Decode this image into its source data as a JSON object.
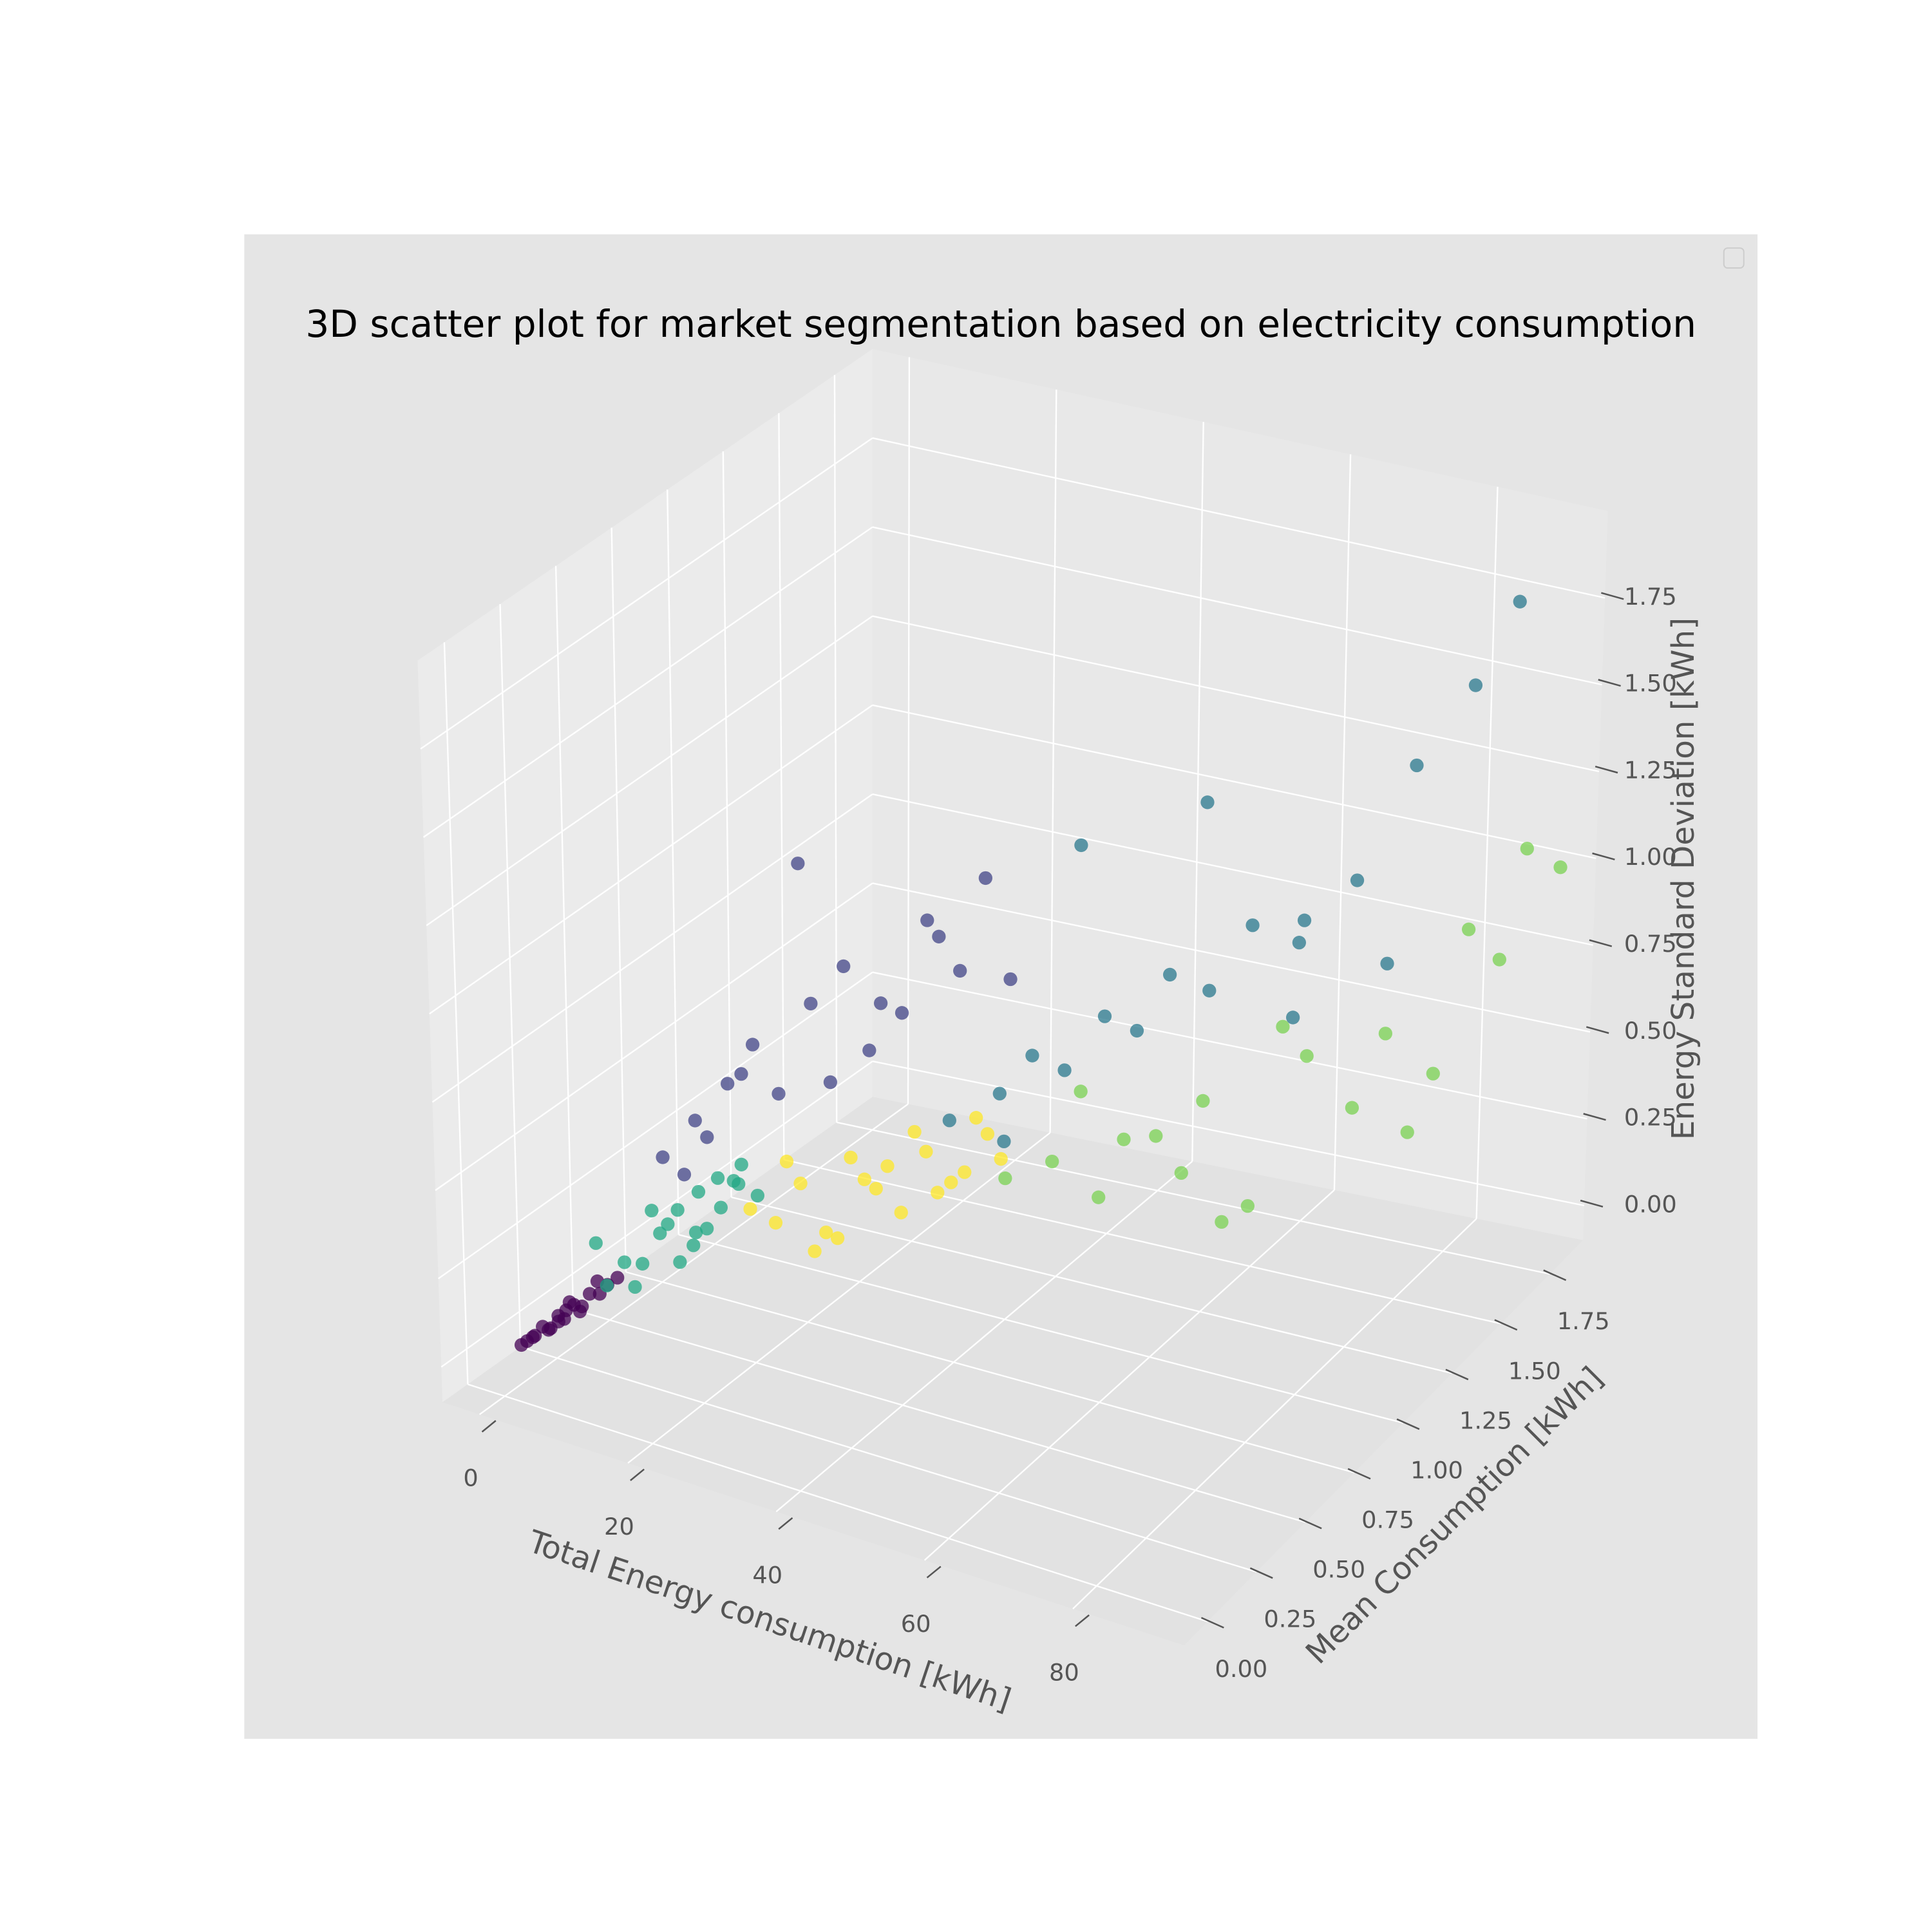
{
  "chart_data": {
    "type": "scatter3d",
    "title": "3D scatter plot for market segmentation based on electricity consumption",
    "xlabel": "Total Energy consumption [kWh]",
    "ylabel": "Mean Consumption [kWh]",
    "zlabel": "Energy Standard Deviation [kWh]",
    "xlim": [
      -5,
      95
    ],
    "ylim": [
      -0.12,
      1.92
    ],
    "zlim": [
      -0.1,
      2.0
    ],
    "xticks": [
      0,
      20,
      40,
      60,
      80
    ],
    "yticks": [
      {
        "value": 0,
        "label": "0.00"
      },
      0.25,
      {
        "value": 0.5,
        "label": "0.50"
      },
      0.75,
      {
        "value": 1,
        "label": "1.00"
      },
      1.25,
      {
        "value": 1.5,
        "label": "1.50"
      },
      1.75
    ],
    "zticks": [
      {
        "value": 0,
        "label": "0.00"
      },
      0.25,
      {
        "value": 0.5,
        "label": "0.50"
      },
      0.75,
      {
        "value": 1,
        "label": "1.00"
      },
      1.25,
      {
        "value": 1.5,
        "label": "1.50"
      },
      1.75
    ],
    "grid": true,
    "series": [
      {
        "color": "#440154",
        "x": [
          1,
          2,
          3,
          4,
          5,
          6,
          2.5,
          3.5,
          4.5,
          1.5,
          5.5,
          7,
          3,
          4,
          6.5,
          2,
          5,
          3.8,
          4.2,
          6
        ],
        "y": [
          0.05,
          0.08,
          0.12,
          0.15,
          0.2,
          0.25,
          0.1,
          0.14,
          0.18,
          0.06,
          0.22,
          0.3,
          0.11,
          0.16,
          0.27,
          0.07,
          0.19,
          0.13,
          0.17,
          0.24
        ],
        "z": [
          0.03,
          0.05,
          0.06,
          0.08,
          0.1,
          0.12,
          0.07,
          0.09,
          0.11,
          0.04,
          0.13,
          0.15,
          0.06,
          0.1,
          0.14,
          0.05,
          0.09,
          0.08,
          0.12,
          0.16
        ]
      },
      {
        "color": "#22a884",
        "x": [
          7,
          8,
          9,
          10,
          11,
          12,
          13,
          14,
          15,
          16,
          8.5,
          10.5,
          12.5,
          14.5,
          17,
          9.5,
          11.5,
          13.5,
          6.5,
          15.5
        ],
        "y": [
          0.25,
          0.3,
          0.35,
          0.4,
          0.45,
          0.5,
          0.48,
          0.55,
          0.6,
          0.58,
          0.33,
          0.42,
          0.47,
          0.52,
          0.62,
          0.38,
          0.44,
          0.5,
          0.22,
          0.56
        ],
        "z": [
          0.15,
          0.2,
          0.18,
          0.25,
          0.3,
          0.22,
          0.35,
          0.28,
          0.33,
          0.4,
          0.12,
          0.27,
          0.2,
          0.38,
          0.3,
          0.32,
          0.16,
          0.24,
          0.28,
          0.36
        ]
      },
      {
        "color": "#414487",
        "x": [
          12,
          15,
          18,
          20,
          22,
          25,
          28,
          30,
          33,
          35,
          38,
          40,
          16,
          19,
          24,
          27,
          31,
          36,
          14,
          42
        ],
        "y": [
          0.35,
          0.4,
          0.45,
          0.5,
          0.55,
          0.6,
          0.65,
          0.7,
          0.75,
          0.8,
          0.85,
          0.9,
          0.42,
          0.48,
          0.58,
          0.62,
          0.72,
          0.82,
          0.38,
          0.95
        ],
        "z": [
          0.5,
          0.6,
          0.7,
          0.8,
          0.65,
          0.9,
          1.0,
          0.75,
          0.85,
          1.1,
          0.95,
          1.2,
          0.55,
          0.72,
          1.3,
          0.68,
          0.88,
          1.05,
          0.45,
          0.9
        ]
      },
      {
        "color": "#fde725",
        "x": [
          18,
          20,
          22,
          24,
          26,
          28,
          30,
          32,
          34,
          36,
          38,
          21,
          25,
          29,
          33,
          37,
          23,
          27,
          31,
          35
        ],
        "y": [
          0.55,
          0.6,
          0.65,
          0.7,
          0.75,
          0.8,
          0.85,
          0.9,
          0.95,
          1.0,
          1.05,
          0.62,
          0.72,
          0.82,
          0.92,
          1.02,
          0.68,
          0.78,
          0.88,
          0.98
        ],
        "z": [
          0.3,
          0.25,
          0.35,
          0.2,
          0.4,
          0.3,
          0.22,
          0.38,
          0.28,
          0.45,
          0.32,
          0.42,
          0.18,
          0.36,
          0.26,
          0.4,
          0.15,
          0.33,
          0.44,
          0.3
        ]
      },
      {
        "color": "#2a788e",
        "x": [
          38,
          42,
          45,
          48,
          52,
          55,
          58,
          62,
          65,
          70,
          75,
          80,
          85,
          88,
          50,
          60,
          68,
          78,
          44,
          72
        ],
        "y": [
          0.8,
          0.9,
          0.95,
          1.0,
          1.05,
          1.1,
          1.15,
          1.2,
          1.3,
          1.35,
          1.45,
          1.55,
          1.65,
          1.75,
          1.0,
          1.25,
          1.4,
          1.5,
          0.85,
          1.3
        ],
        "z": [
          0.55,
          0.6,
          0.7,
          0.65,
          0.8,
          0.75,
          0.9,
          0.85,
          1.0,
          0.95,
          1.1,
          1.4,
          1.6,
          1.8,
          1.3,
          1.35,
          0.7,
          0.85,
          0.5,
          1.05
        ]
      },
      {
        "color": "#7ad151",
        "x": [
          40,
          45,
          50,
          55,
          60,
          65,
          70,
          75,
          80,
          85,
          90,
          92,
          48,
          58,
          68,
          78,
          88,
          62,
          52,
          82
        ],
        "y": [
          1.0,
          1.05,
          1.1,
          1.2,
          1.25,
          1.3,
          1.4,
          1.45,
          1.55,
          1.65,
          1.75,
          1.85,
          1.08,
          1.22,
          1.35,
          1.5,
          1.7,
          1.28,
          1.15,
          1.6
        ],
        "z": [
          0.3,
          0.35,
          0.25,
          0.4,
          0.5,
          0.2,
          0.6,
          0.45,
          0.35,
          0.9,
          1.1,
          1.0,
          0.55,
          0.3,
          0.7,
          0.65,
          0.8,
          0.15,
          0.4,
          0.5
        ]
      }
    ]
  }
}
